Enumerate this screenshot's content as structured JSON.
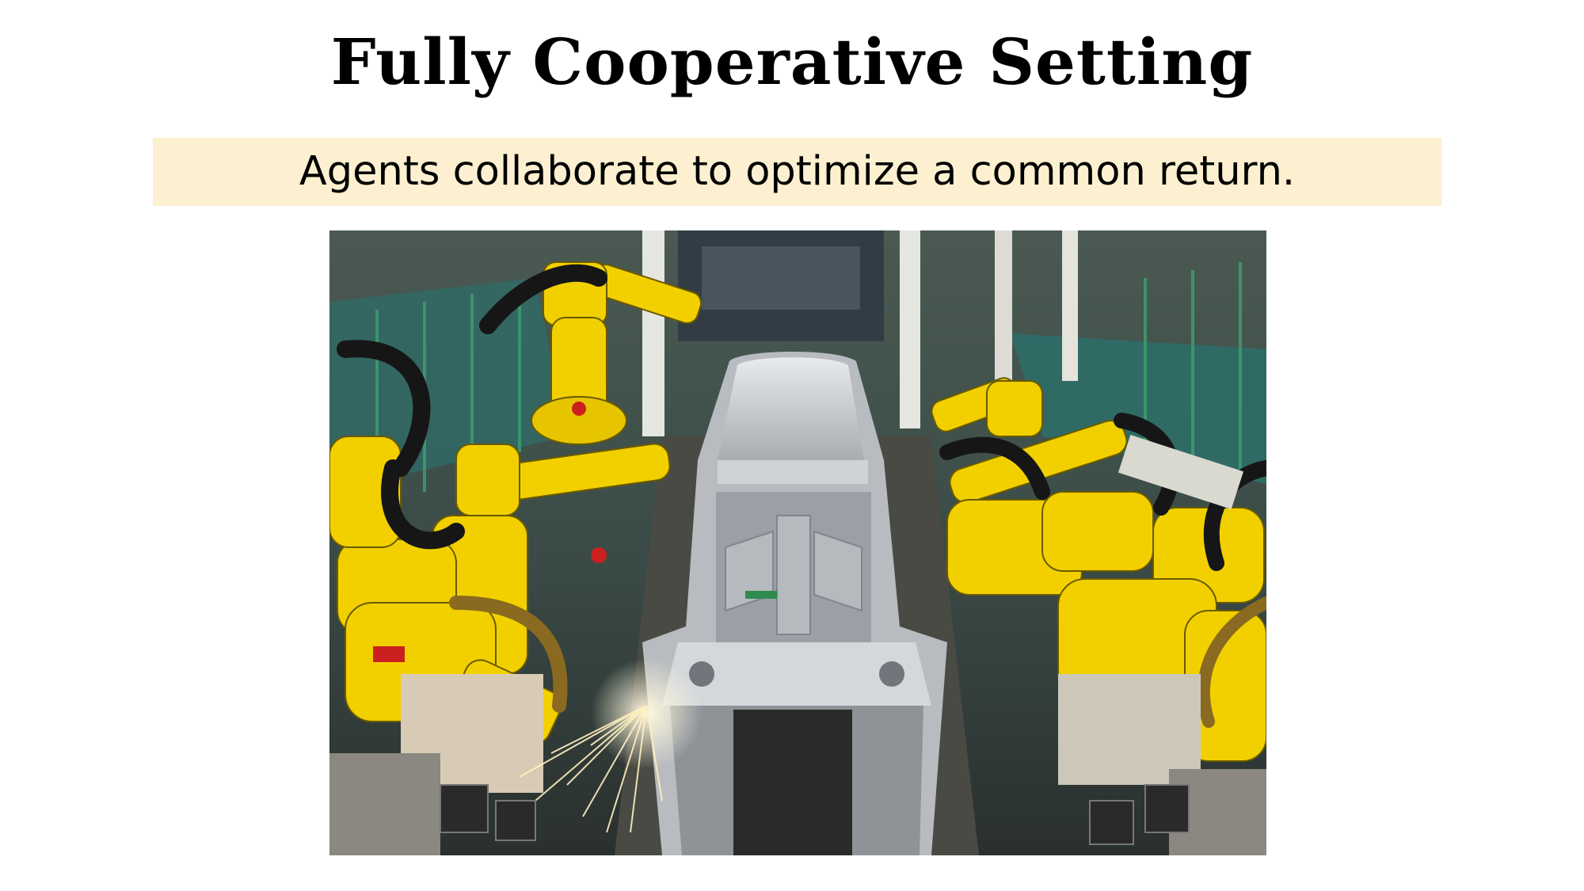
{
  "slide": {
    "title": "Fully Cooperative Setting",
    "subtitle": "Agents collaborate to optimize a common return."
  },
  "image": {
    "alt": "Yellow industrial robot arms welding a car body on an assembly line",
    "colors": {
      "robot_yellow": "#f2d000",
      "car_silver": "#c8ccd0",
      "floor_teal": "#2f5f5a",
      "band_background": "#fdf0d0"
    }
  }
}
